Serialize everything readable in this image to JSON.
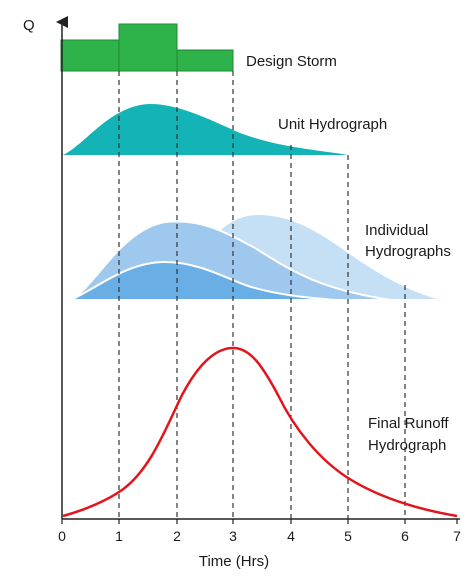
{
  "axes": {
    "y_label": "Q",
    "x_label": "Time (Hrs)",
    "x_ticks": [
      "0",
      "1",
      "2",
      "3",
      "4",
      "5",
      "6",
      "7"
    ]
  },
  "labels": {
    "design_storm": "Design Storm",
    "unit_hydrograph": "Unit Hydrograph",
    "individual_line1": "Individual",
    "individual_line2": "Hydrographs",
    "final_line1": "Final Runoff",
    "final_line2": "Hydrograph"
  },
  "colors": {
    "storm": "#2db34a",
    "unit_hydrograph": "#14b3b5",
    "individual_light": "#c5dff5",
    "individual_mid": "#9ec8ee",
    "individual_dark": "#6aaee6",
    "final_runoff": "#e3141b",
    "axis": "#222222",
    "guide_lines": "#333333"
  },
  "storm_blocks": [
    {
      "start_hr": 0,
      "end_hr": 1,
      "relative_depth": 0.55
    },
    {
      "start_hr": 1,
      "end_hr": 2,
      "relative_depth": 1.0
    },
    {
      "start_hr": 2,
      "end_hr": 3,
      "relative_depth": 0.37
    }
  ]
}
